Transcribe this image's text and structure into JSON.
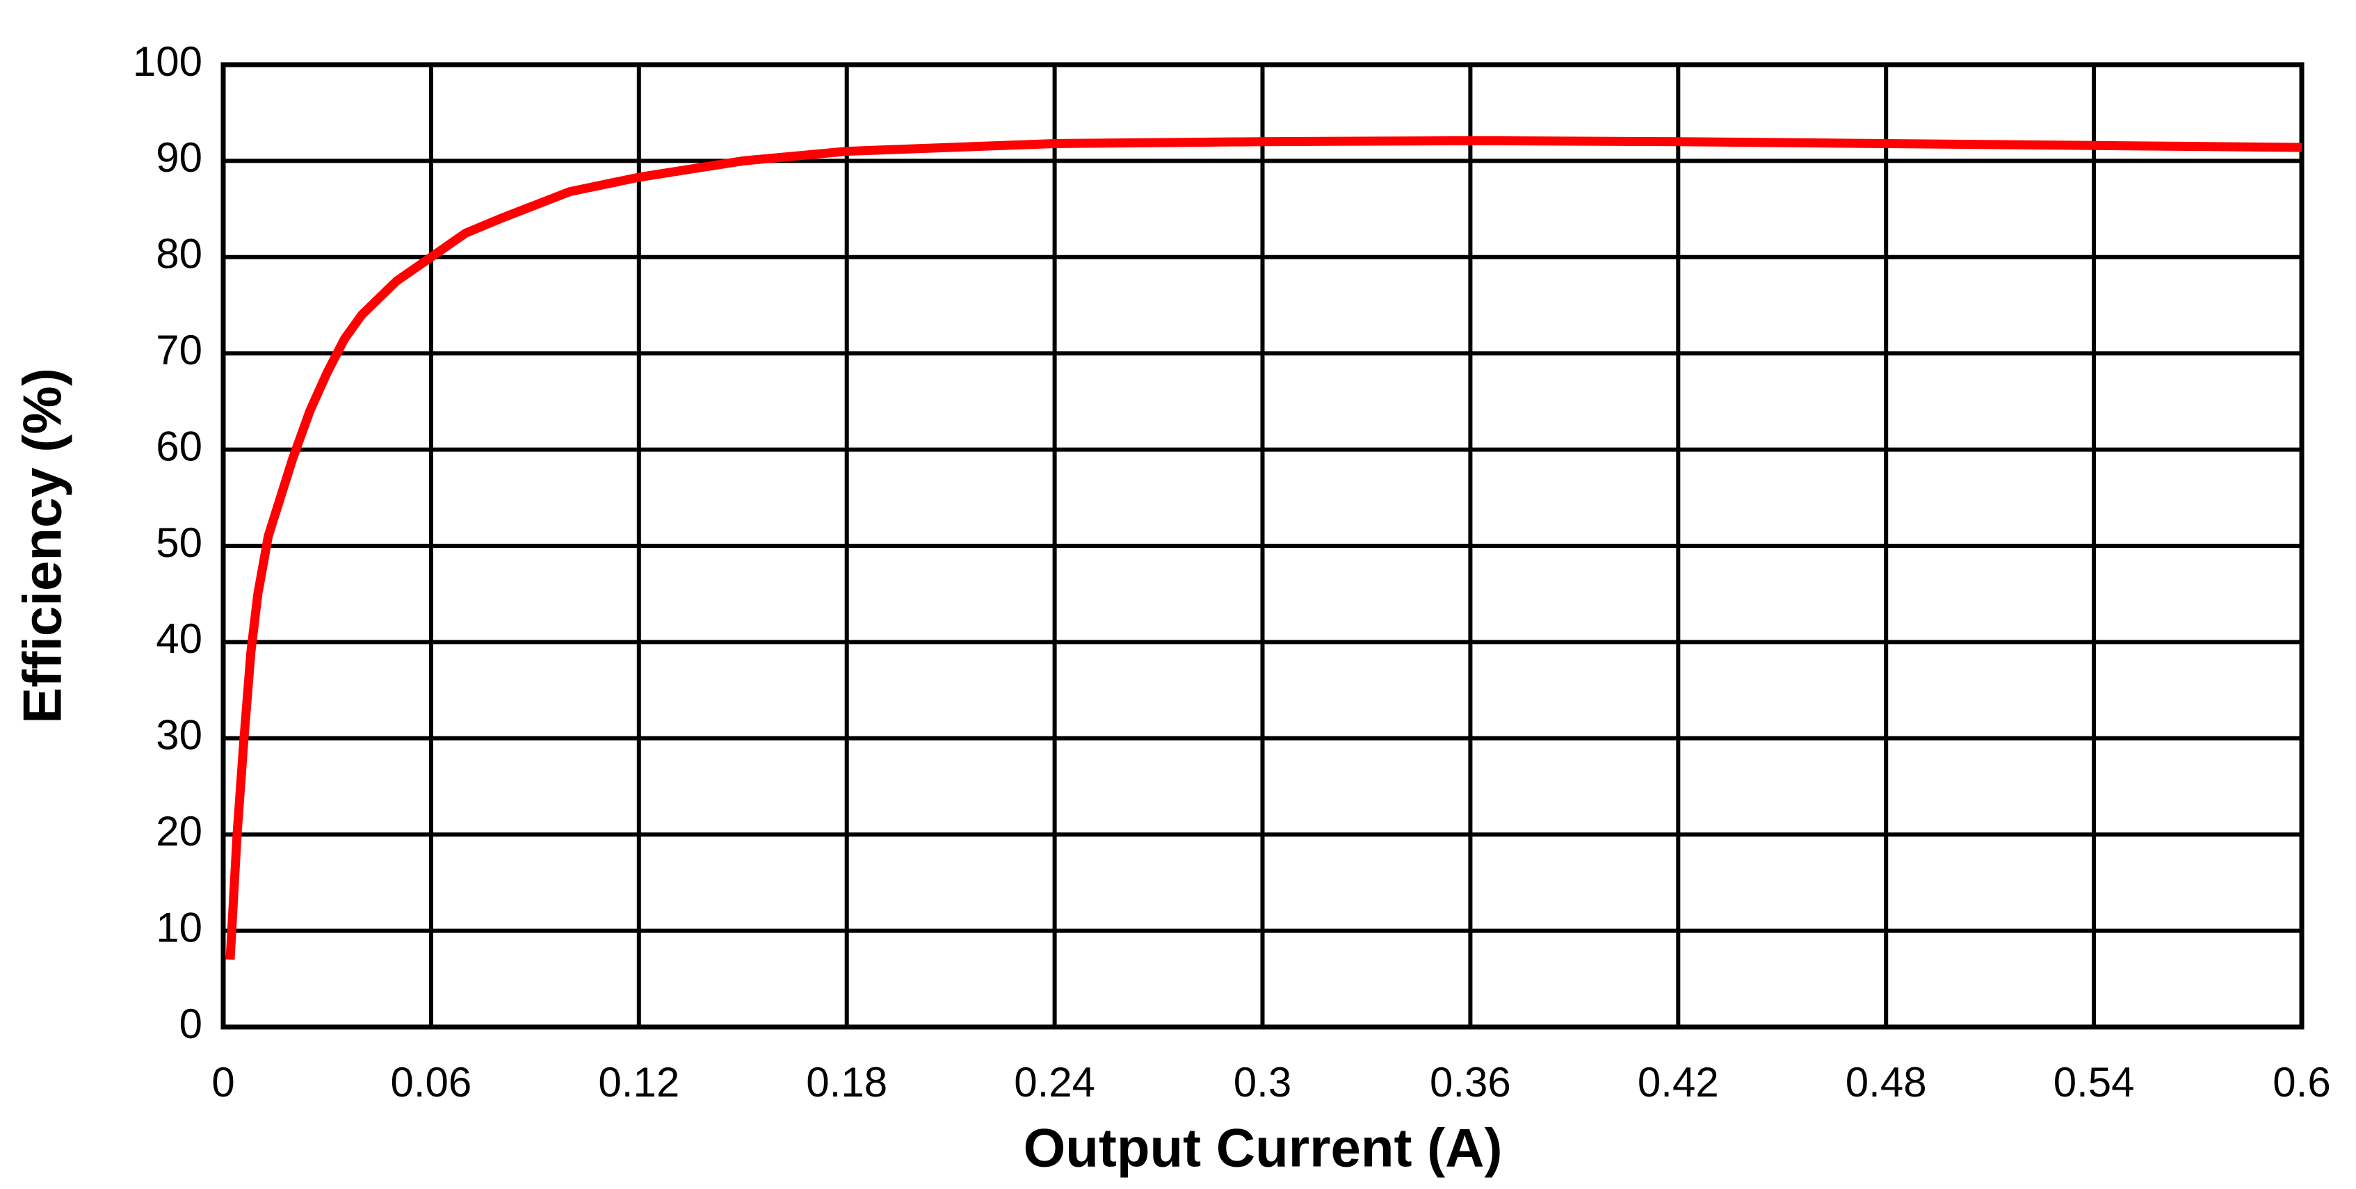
{
  "chart_data": {
    "type": "line",
    "xlabel": "Output Current (A)",
    "ylabel": "Efficiency (%)",
    "series": [
      {
        "color": "#ff0000",
        "x": [
          0.002,
          0.004,
          0.006,
          0.008,
          0.01,
          0.013,
          0.02,
          0.025,
          0.03,
          0.035,
          0.04,
          0.05,
          0.06,
          0.07,
          0.08,
          0.1,
          0.12,
          0.15,
          0.18,
          0.24,
          0.3,
          0.36,
          0.42,
          0.48,
          0.54,
          0.6
        ],
        "values": [
          7,
          20,
          30,
          39,
          45,
          51,
          59,
          64,
          68,
          71.5,
          74,
          77.5,
          80,
          82.5,
          84,
          86.8,
          88.3,
          90,
          91,
          91.8,
          92,
          92.1,
          92,
          91.8,
          91.6,
          91.4
        ]
      }
    ],
    "xlim": [
      0,
      0.6
    ],
    "xticks": [
      0,
      0.06,
      0.12,
      0.18,
      0.24,
      0.3,
      0.36,
      0.42,
      0.48,
      0.54,
      0.6
    ],
    "ylim": [
      0,
      100
    ],
    "yticks": [
      0,
      10,
      20,
      30,
      40,
      50,
      60,
      70,
      80,
      90,
      100
    ],
    "grid": true
  }
}
